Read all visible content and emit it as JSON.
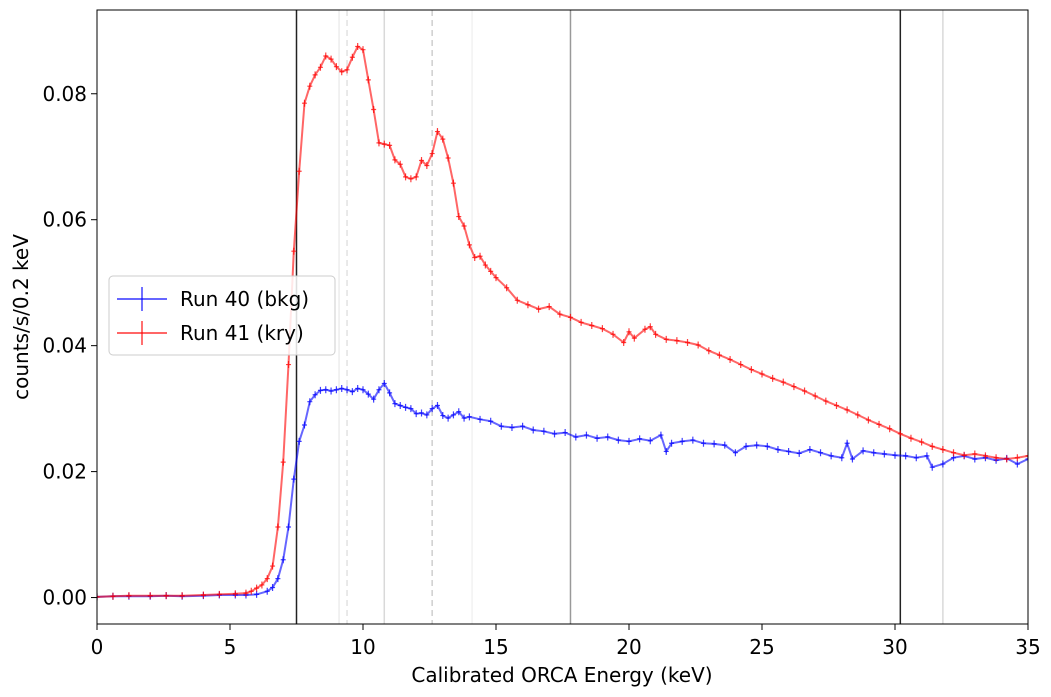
{
  "chart_data": {
    "type": "line",
    "xlabel": "Calibrated ORCA Energy (keV)",
    "ylabel": "counts/s/0.2 keV",
    "xlim": [
      0,
      35
    ],
    "ylim": [
      -0.0042,
      0.0933
    ],
    "x_ticks": [
      0,
      5,
      10,
      15,
      20,
      25,
      30,
      35
    ],
    "x_tick_labels": [
      "0",
      "5",
      "10",
      "15",
      "20",
      "25",
      "30",
      "35"
    ],
    "y_ticks": [
      0.0,
      0.02,
      0.04,
      0.06,
      0.08
    ],
    "y_tick_labels": [
      "0.00",
      "0.02",
      "0.04",
      "0.06",
      "0.08"
    ],
    "grid": false,
    "legend_position": "center-left",
    "x_step": 0.2,
    "reference_lines": [
      {
        "x": 7.5,
        "style": "solid",
        "color": "#222222"
      },
      {
        "x": 30.2,
        "style": "solid",
        "color": "#222222"
      },
      {
        "x": 17.8,
        "style": "solid",
        "color": "#999999"
      },
      {
        "x": 10.8,
        "style": "solid",
        "color": "#d9d9d9"
      },
      {
        "x": 31.8,
        "style": "solid",
        "color": "#d9d9d9"
      },
      {
        "x": 9.1,
        "style": "solid",
        "color": "#ececec"
      },
      {
        "x": 14.1,
        "style": "solid",
        "color": "#f2f2f2"
      },
      {
        "x": 12.6,
        "style": "dashed",
        "color": "#cfcfcf"
      },
      {
        "x": 9.4,
        "style": "dashed",
        "color": "#e2e2e2"
      }
    ],
    "series": [
      {
        "name": "Run 40 (bkg)",
        "color": "#0000ff",
        "points": [
          [
            0.0,
            0.0001
          ],
          [
            0.6,
            0.0002
          ],
          [
            1.2,
            0.0002
          ],
          [
            2.0,
            0.0002
          ],
          [
            2.6,
            0.0003
          ],
          [
            3.2,
            0.0002
          ],
          [
            4.0,
            0.0003
          ],
          [
            4.6,
            0.0004
          ],
          [
            5.2,
            0.0004
          ],
          [
            5.6,
            0.0004
          ],
          [
            6.0,
            0.0005
          ],
          [
            6.4,
            0.001
          ],
          [
            6.6,
            0.0016
          ],
          [
            6.8,
            0.003
          ],
          [
            7.0,
            0.006
          ],
          [
            7.2,
            0.0112
          ],
          [
            7.4,
            0.0188
          ],
          [
            7.6,
            0.0248
          ],
          [
            7.8,
            0.0274
          ],
          [
            8.0,
            0.0311
          ],
          [
            8.2,
            0.0322
          ],
          [
            8.4,
            0.0329
          ],
          [
            8.6,
            0.033
          ],
          [
            8.8,
            0.0328
          ],
          [
            9.0,
            0.033
          ],
          [
            9.2,
            0.0332
          ],
          [
            9.4,
            0.033
          ],
          [
            9.6,
            0.0327
          ],
          [
            9.8,
            0.0332
          ],
          [
            10.0,
            0.033
          ],
          [
            10.2,
            0.0323
          ],
          [
            10.4,
            0.0315
          ],
          [
            10.6,
            0.033
          ],
          [
            10.8,
            0.034
          ],
          [
            11.0,
            0.0325
          ],
          [
            11.2,
            0.0308
          ],
          [
            11.4,
            0.0305
          ],
          [
            11.6,
            0.0302
          ],
          [
            11.8,
            0.03
          ],
          [
            12.0,
            0.0292
          ],
          [
            12.2,
            0.0293
          ],
          [
            12.4,
            0.029
          ],
          [
            12.6,
            0.03
          ],
          [
            12.8,
            0.0305
          ],
          [
            13.0,
            0.0289
          ],
          [
            13.2,
            0.0285
          ],
          [
            13.4,
            0.029
          ],
          [
            13.6,
            0.0295
          ],
          [
            13.8,
            0.0285
          ],
          [
            14.0,
            0.0287
          ],
          [
            14.4,
            0.0283
          ],
          [
            14.8,
            0.028
          ],
          [
            15.2,
            0.0272
          ],
          [
            15.6,
            0.027
          ],
          [
            16.0,
            0.0272
          ],
          [
            16.4,
            0.0266
          ],
          [
            16.8,
            0.0264
          ],
          [
            17.2,
            0.026
          ],
          [
            17.6,
            0.0262
          ],
          [
            18.0,
            0.0255
          ],
          [
            18.4,
            0.0258
          ],
          [
            18.8,
            0.0253
          ],
          [
            19.2,
            0.0255
          ],
          [
            19.6,
            0.025
          ],
          [
            20.0,
            0.0248
          ],
          [
            20.4,
            0.0252
          ],
          [
            20.8,
            0.0249
          ],
          [
            21.2,
            0.0258
          ],
          [
            21.4,
            0.0232
          ],
          [
            21.6,
            0.0245
          ],
          [
            22.0,
            0.0248
          ],
          [
            22.4,
            0.025
          ],
          [
            22.8,
            0.0245
          ],
          [
            23.2,
            0.0244
          ],
          [
            23.6,
            0.0242
          ],
          [
            24.0,
            0.023
          ],
          [
            24.4,
            0.024
          ],
          [
            24.8,
            0.0242
          ],
          [
            25.2,
            0.024
          ],
          [
            25.6,
            0.0235
          ],
          [
            26.0,
            0.0232
          ],
          [
            26.4,
            0.0229
          ],
          [
            26.8,
            0.0235
          ],
          [
            27.2,
            0.023
          ],
          [
            27.6,
            0.0225
          ],
          [
            28.0,
            0.0222
          ],
          [
            28.2,
            0.0245
          ],
          [
            28.4,
            0.022
          ],
          [
            28.8,
            0.0233
          ],
          [
            29.2,
            0.023
          ],
          [
            29.6,
            0.0228
          ],
          [
            30.0,
            0.0226
          ],
          [
            30.4,
            0.0225
          ],
          [
            30.8,
            0.0222
          ],
          [
            31.2,
            0.0225
          ],
          [
            31.4,
            0.0207
          ],
          [
            31.8,
            0.0212
          ],
          [
            32.2,
            0.0222
          ],
          [
            32.6,
            0.0225
          ],
          [
            33.0,
            0.022
          ],
          [
            33.4,
            0.0222
          ],
          [
            33.8,
            0.0218
          ],
          [
            34.2,
            0.0221
          ],
          [
            34.6,
            0.0212
          ],
          [
            35.0,
            0.022
          ]
        ]
      },
      {
        "name": "Run 41 (kry)",
        "color": "#ff0000",
        "points": [
          [
            0.0,
            0.0001
          ],
          [
            0.6,
            0.0002
          ],
          [
            1.2,
            0.0003
          ],
          [
            2.0,
            0.0003
          ],
          [
            2.6,
            0.0003
          ],
          [
            3.2,
            0.0003
          ],
          [
            4.0,
            0.0004
          ],
          [
            4.6,
            0.0005
          ],
          [
            5.2,
            0.0006
          ],
          [
            5.6,
            0.0007
          ],
          [
            5.8,
            0.001
          ],
          [
            6.0,
            0.0015
          ],
          [
            6.2,
            0.002
          ],
          [
            6.4,
            0.003
          ],
          [
            6.6,
            0.005
          ],
          [
            6.8,
            0.0112
          ],
          [
            7.0,
            0.0215
          ],
          [
            7.2,
            0.037
          ],
          [
            7.4,
            0.055
          ],
          [
            7.6,
            0.0677
          ],
          [
            7.8,
            0.0785
          ],
          [
            8.0,
            0.0812
          ],
          [
            8.2,
            0.083
          ],
          [
            8.4,
            0.0842
          ],
          [
            8.6,
            0.086
          ],
          [
            8.8,
            0.0855
          ],
          [
            9.0,
            0.0843
          ],
          [
            9.2,
            0.0835
          ],
          [
            9.4,
            0.0838
          ],
          [
            9.6,
            0.0858
          ],
          [
            9.8,
            0.0875
          ],
          [
            10.0,
            0.087
          ],
          [
            10.2,
            0.0822
          ],
          [
            10.4,
            0.0775
          ],
          [
            10.6,
            0.0722
          ],
          [
            10.8,
            0.072
          ],
          [
            11.0,
            0.0718
          ],
          [
            11.2,
            0.0695
          ],
          [
            11.4,
            0.0688
          ],
          [
            11.6,
            0.0668
          ],
          [
            11.8,
            0.0665
          ],
          [
            12.0,
            0.0668
          ],
          [
            12.2,
            0.0694
          ],
          [
            12.4,
            0.0686
          ],
          [
            12.6,
            0.0705
          ],
          [
            12.8,
            0.074
          ],
          [
            13.0,
            0.0728
          ],
          [
            13.2,
            0.0698
          ],
          [
            13.4,
            0.0658
          ],
          [
            13.6,
            0.0605
          ],
          [
            13.8,
            0.059
          ],
          [
            14.0,
            0.056
          ],
          [
            14.2,
            0.054
          ],
          [
            14.4,
            0.0542
          ],
          [
            14.6,
            0.0528
          ],
          [
            14.8,
            0.0518
          ],
          [
            15.0,
            0.0508
          ],
          [
            15.4,
            0.0492
          ],
          [
            15.8,
            0.0472
          ],
          [
            16.2,
            0.0465
          ],
          [
            16.6,
            0.0458
          ],
          [
            17.0,
            0.0462
          ],
          [
            17.4,
            0.045
          ],
          [
            17.8,
            0.0445
          ],
          [
            18.2,
            0.0437
          ],
          [
            18.6,
            0.0432
          ],
          [
            19.0,
            0.0427
          ],
          [
            19.4,
            0.0418
          ],
          [
            19.8,
            0.0405
          ],
          [
            20.0,
            0.0422
          ],
          [
            20.2,
            0.0412
          ],
          [
            20.6,
            0.0426
          ],
          [
            20.8,
            0.043
          ],
          [
            21.0,
            0.0418
          ],
          [
            21.4,
            0.041
          ],
          [
            21.8,
            0.0408
          ],
          [
            22.2,
            0.0405
          ],
          [
            22.6,
            0.0401
          ],
          [
            23.0,
            0.0392
          ],
          [
            23.4,
            0.0385
          ],
          [
            23.8,
            0.0378
          ],
          [
            24.2,
            0.037
          ],
          [
            24.6,
            0.0362
          ],
          [
            25.0,
            0.0355
          ],
          [
            25.4,
            0.0348
          ],
          [
            25.8,
            0.0342
          ],
          [
            26.2,
            0.0335
          ],
          [
            26.6,
            0.0328
          ],
          [
            27.0,
            0.032
          ],
          [
            27.4,
            0.0312
          ],
          [
            27.8,
            0.0305
          ],
          [
            28.2,
            0.0298
          ],
          [
            28.6,
            0.029
          ],
          [
            29.0,
            0.0282
          ],
          [
            29.4,
            0.0275
          ],
          [
            29.8,
            0.0268
          ],
          [
            30.2,
            0.026
          ],
          [
            30.6,
            0.0253
          ],
          [
            31.0,
            0.0247
          ],
          [
            31.4,
            0.024
          ],
          [
            31.8,
            0.0235
          ],
          [
            32.2,
            0.023
          ],
          [
            32.6,
            0.0226
          ],
          [
            33.0,
            0.0228
          ],
          [
            33.4,
            0.0225
          ],
          [
            33.8,
            0.0222
          ],
          [
            34.2,
            0.022
          ],
          [
            34.6,
            0.0222
          ],
          [
            35.0,
            0.0225
          ]
        ]
      }
    ]
  }
}
